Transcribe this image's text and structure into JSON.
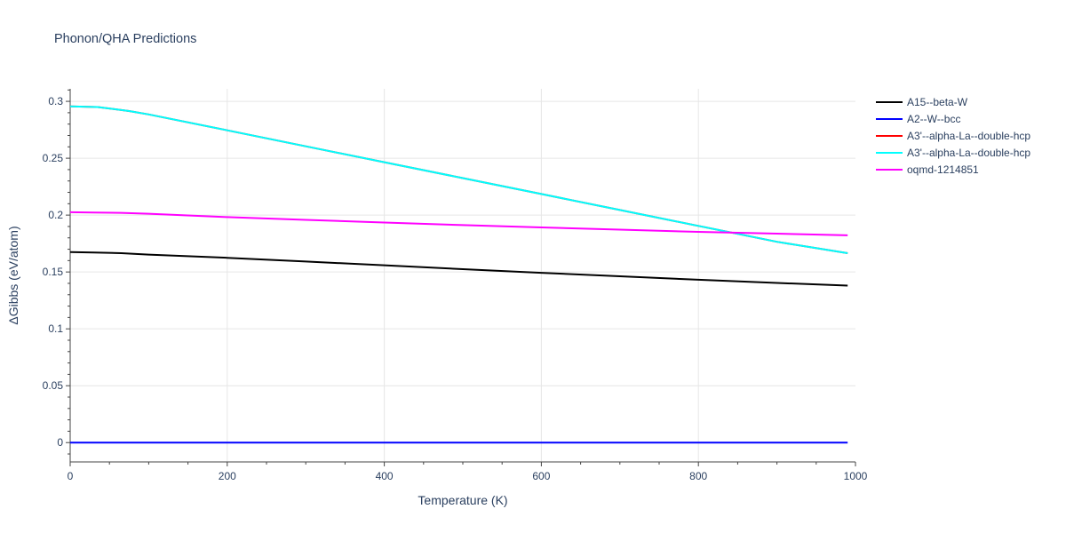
{
  "chart_data": {
    "type": "line",
    "title": "Phonon/QHA Predictions",
    "xlabel": "Temperature (K)",
    "ylabel": "ΔGibbs (eV/atom)",
    "xlim": [
      0,
      1000
    ],
    "ylim": [
      -0.017,
      0.311
    ],
    "x_ticks": [
      0,
      200,
      400,
      600,
      800,
      1000
    ],
    "y_ticks": [
      0,
      0.05,
      0.1,
      0.15,
      0.2,
      0.25,
      0.3
    ],
    "x_tick_labels": [
      "0",
      "200",
      "400",
      "600",
      "800",
      "1000"
    ],
    "y_tick_labels": [
      "0",
      "0.05",
      "0.1",
      "0.15",
      "0.2",
      "0.25",
      "0.3"
    ],
    "grid": true,
    "legend_position": "right",
    "series": [
      {
        "name": "A15--beta-W",
        "color": "#000000",
        "x": [
          0,
          30,
          65,
          100,
          200,
          300,
          400,
          500,
          600,
          700,
          800,
          900,
          990
        ],
        "y": [
          0.1675,
          0.1671,
          0.1665,
          0.1653,
          0.1625,
          0.1592,
          0.1559,
          0.1525,
          0.1493,
          0.1462,
          0.1432,
          0.1404,
          0.138
        ]
      },
      {
        "name": "A2--W--bcc",
        "color": "#0000ff",
        "x": [
          0,
          990
        ],
        "y": [
          0,
          0
        ]
      },
      {
        "name": "A3'--alpha-La--double-hcp",
        "color": "#ff0000",
        "x": [
          0,
          35,
          75,
          100,
          200,
          300,
          400,
          500,
          600,
          700,
          800,
          900,
          990
        ],
        "y": [
          0.2955,
          0.295,
          0.2915,
          0.2885,
          0.2745,
          0.2605,
          0.2465,
          0.2325,
          0.2185,
          0.2045,
          0.1905,
          0.1765,
          0.1665
        ]
      },
      {
        "name": "A3'--alpha-La--double-hcp",
        "color": "#00ffff",
        "x": [
          0,
          35,
          75,
          100,
          200,
          300,
          400,
          500,
          600,
          700,
          800,
          900,
          990
        ],
        "y": [
          0.2955,
          0.295,
          0.2915,
          0.2885,
          0.2745,
          0.2605,
          0.2465,
          0.2325,
          0.2185,
          0.2045,
          0.1905,
          0.1765,
          0.1665
        ]
      },
      {
        "name": "oqmd-1214851",
        "color": "#ff00ff",
        "x": [
          0,
          30,
          65,
          100,
          200,
          300,
          400,
          500,
          600,
          700,
          800,
          900,
          990
        ],
        "y": [
          0.2025,
          0.2023,
          0.202,
          0.2012,
          0.1982,
          0.1958,
          0.1935,
          0.1912,
          0.1892,
          0.1872,
          0.1853,
          0.1837,
          0.1822
        ]
      }
    ]
  }
}
